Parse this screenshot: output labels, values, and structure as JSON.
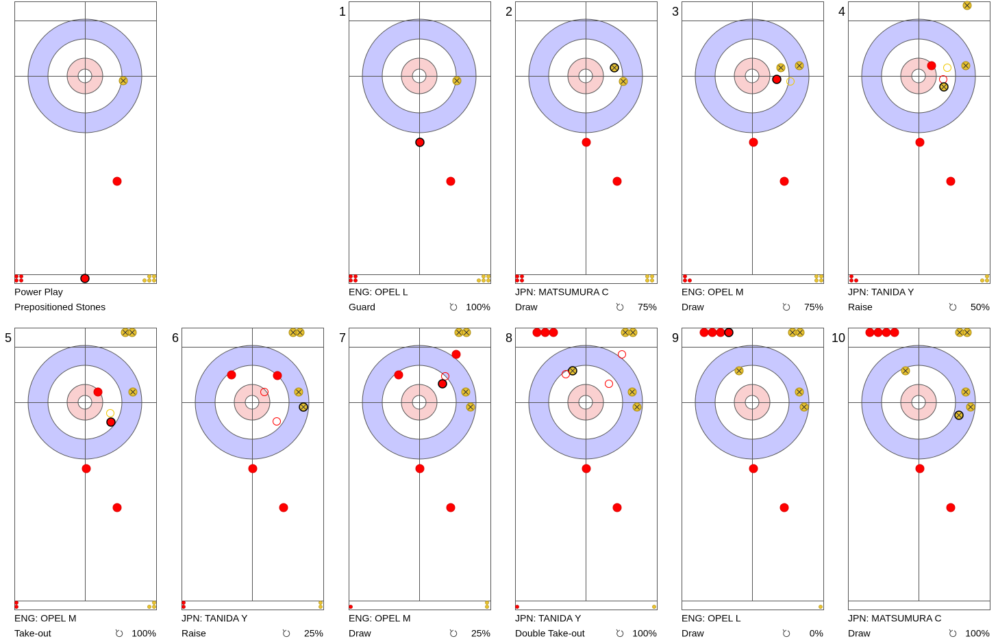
{
  "panels": [
    {
      "title": "Power Play",
      "subtitle": "Prepositioned Stones"
    },
    {
      "number": "1",
      "title": "ENG: OPEL L",
      "subtitle": "Guard",
      "score": "100%"
    },
    {
      "number": "2",
      "title": "JPN: MATSUMURA C",
      "subtitle": "Draw",
      "score": "75%"
    },
    {
      "number": "3",
      "title": "ENG: OPEL M",
      "subtitle": "Draw",
      "score": "75%"
    },
    {
      "number": "4",
      "title": "JPN: TANIDA Y",
      "subtitle": "Raise",
      "score": "50%"
    },
    {
      "number": "5",
      "title": "ENG: OPEL M",
      "subtitle": "Take-out",
      "score": "100%"
    },
    {
      "number": "6",
      "title": "JPN: TANIDA Y",
      "subtitle": "Raise",
      "score": "25%"
    },
    {
      "number": "7",
      "title": "ENG: OPEL M",
      "subtitle": "Draw",
      "score": "25%"
    },
    {
      "number": "8",
      "title": "JPN: TANIDA Y",
      "subtitle": "Double Take-out",
      "score": "100%"
    },
    {
      "number": "9",
      "title": "ENG: OPEL L",
      "subtitle": "Draw",
      "score": "0%"
    },
    {
      "number": "10",
      "title": "JPN: MATSUMURA C",
      "subtitle": "Draw",
      "score": "100%"
    }
  ]
}
